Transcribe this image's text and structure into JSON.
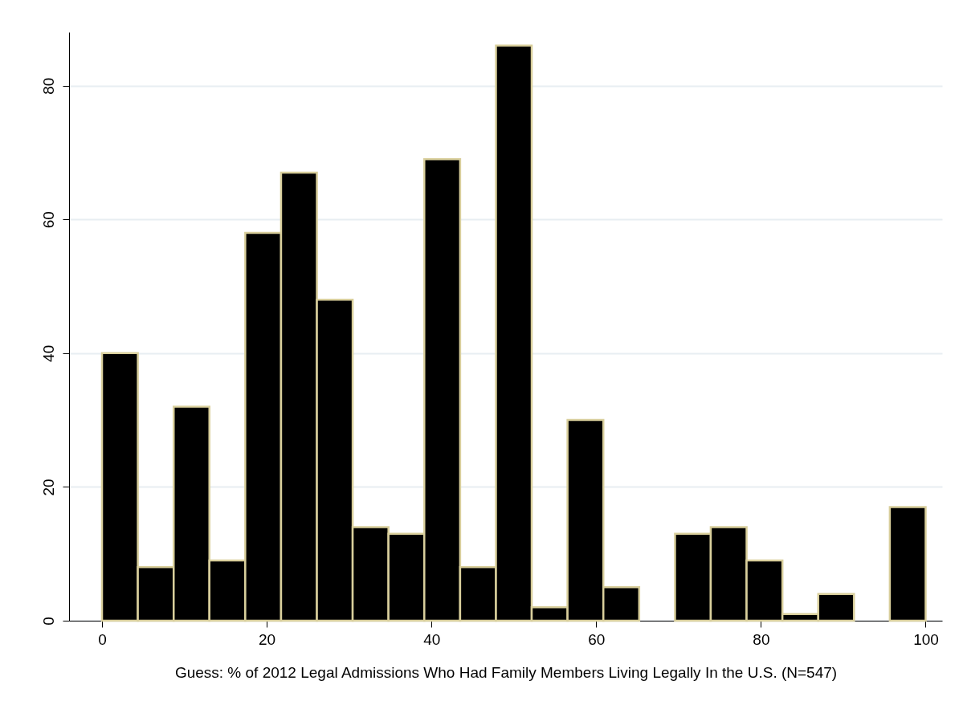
{
  "chart_data": {
    "type": "histogram",
    "xlabel": "Guess: % of 2012 Legal Admissions Who Had Family Members Living Legally In the U.S. (N=547)",
    "bins": [
      0,
      4.35,
      8.7,
      13.04,
      17.39,
      21.74,
      26.09,
      30.43,
      34.78,
      39.13,
      43.48,
      47.83,
      52.17,
      56.52,
      60.87,
      65.22,
      69.57,
      73.91,
      78.26,
      82.61,
      86.96,
      91.3,
      95.65,
      100
    ],
    "values": [
      40,
      8,
      32,
      9,
      58,
      67,
      48,
      14,
      13,
      69,
      8,
      86,
      2,
      30,
      5,
      0,
      13,
      14,
      9,
      1,
      4,
      0,
      17
    ],
    "color": "#000000",
    "xlim": [
      -4,
      102
    ],
    "xticks": [
      0,
      20,
      40,
      60,
      80,
      100
    ],
    "ylim": [
      0,
      88
    ],
    "yticks": [
      0,
      20,
      40,
      60,
      80
    ],
    "grid": "y"
  }
}
